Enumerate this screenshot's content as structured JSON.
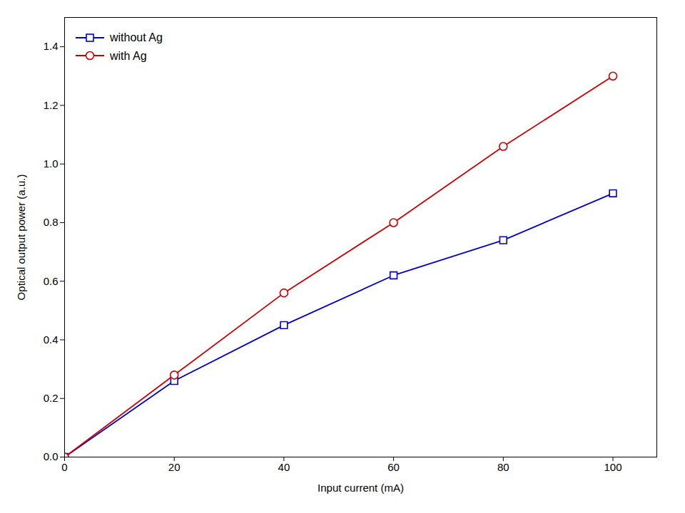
{
  "chart_data": {
    "type": "line",
    "xlabel": "Input current (mA)",
    "ylabel": "Optical output power (a.u.)",
    "x": [
      0,
      20,
      40,
      60,
      80,
      100
    ],
    "series": [
      {
        "name": "without Ag",
        "color": "#0000cc",
        "marker": "square",
        "values": [
          0.0,
          0.26,
          0.45,
          0.62,
          0.74,
          0.9
        ]
      },
      {
        "name": "with Ag",
        "color": "#cc0000",
        "marker": "circle",
        "values": [
          0.0,
          0.28,
          0.56,
          0.8,
          1.06,
          1.3
        ]
      }
    ],
    "xlim": [
      0,
      108
    ],
    "ylim": [
      0.0,
      1.5
    ],
    "xticks": [
      0,
      20,
      40,
      60,
      80,
      100
    ],
    "yticks": [
      {
        "value": 0.0,
        "label": "0.0"
      },
      0.2,
      0.4,
      0.6,
      0.8,
      {
        "value": 1.0,
        "label": "1.0"
      },
      1.2,
      1.4
    ],
    "grid": false,
    "legend": "upper left"
  }
}
